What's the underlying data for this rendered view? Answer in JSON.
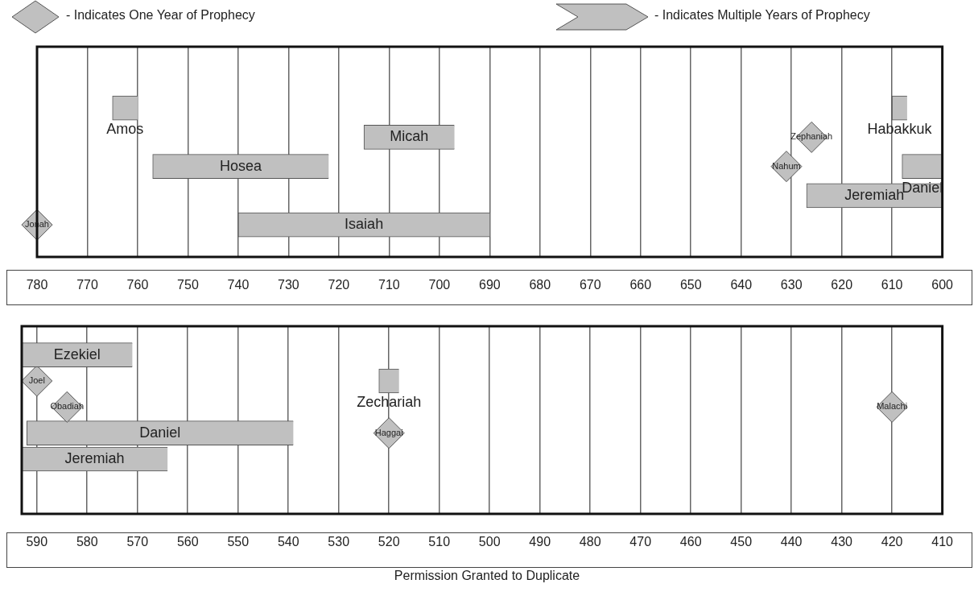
{
  "chart_data": [
    {
      "type": "bar",
      "orientation": "horizontal",
      "categories": [
        null,
        null,
        null,
        null,
        null,
        null
      ],
      "xlim": [
        780,
        600
      ],
      "xticks": [
        780,
        770,
        760,
        750,
        740,
        730,
        720,
        710,
        700,
        690,
        680,
        670,
        660,
        650,
        640,
        630,
        620,
        610,
        600
      ],
      "grid": "x",
      "annotations": [
        "- Indicates One Year of Prophecy",
        "- Indicates Multiple Years of Prophecy"
      ],
      "series": [
        {
          "name": "Amos",
          "color": "#c0c0c0",
          "base": [
            null,
            760,
            null,
            null,
            null,
            null
          ],
          "values": [
            null,
            5,
            null,
            null,
            null,
            null
          ]
        },
        {
          "name": "Habakkuk",
          "color": "#c0c0c0",
          "base": [
            null,
            607,
            null,
            null,
            null,
            null
          ],
          "values": [
            null,
            3,
            null,
            null,
            null,
            null
          ]
        },
        {
          "name": "Micah",
          "color": "#c0c0c0",
          "base": [
            null,
            null,
            697,
            null,
            null,
            null
          ],
          "values": [
            null,
            null,
            18,
            null,
            null,
            null
          ]
        },
        {
          "name": "Zephaniah",
          "type": "scatter",
          "color": "#c0c0c0",
          "marker": "diamond",
          "values": [
            null,
            null,
            626,
            null,
            null,
            null
          ]
        },
        {
          "name": "Hosea",
          "color": "#c0c0c0",
          "base": [
            null,
            null,
            null,
            722,
            null,
            null
          ],
          "values": [
            null,
            null,
            null,
            35,
            null,
            null
          ]
        },
        {
          "name": "Nahum",
          "type": "scatter",
          "color": "#c0c0c0",
          "marker": "diamond",
          "values": [
            null,
            null,
            null,
            631,
            null,
            null
          ]
        },
        {
          "name": "Daniel",
          "color": "#c0c0c0",
          "base": [
            null,
            null,
            null,
            600,
            null,
            null
          ],
          "values": [
            null,
            null,
            null,
            8,
            null,
            null
          ]
        },
        {
          "name": "Jeremiah",
          "color": "#c0c0c0",
          "base": [
            null,
            null,
            null,
            null,
            600,
            null
          ],
          "values": [
            null,
            null,
            null,
            null,
            27,
            null
          ]
        },
        {
          "name": "Jonah",
          "type": "scatter",
          "color": "#c0c0c0",
          "marker": "diamond",
          "values": [
            null,
            null,
            null,
            null,
            null,
            780
          ]
        },
        {
          "name": "Isaiah",
          "color": "#c0c0c0",
          "base": [
            null,
            null,
            null,
            null,
            null,
            690
          ],
          "values": [
            null,
            null,
            null,
            null,
            null,
            50
          ]
        }
      ]
    },
    {
      "type": "bar",
      "orientation": "horizontal",
      "categories": [
        null,
        null,
        null,
        null,
        null,
        null
      ],
      "xlim": [
        593,
        410
      ],
      "xticks": [
        590,
        580,
        570,
        560,
        550,
        540,
        530,
        520,
        510,
        500,
        490,
        480,
        470,
        460,
        450,
        440,
        430,
        420,
        410
      ],
      "grid": "x",
      "annotations": [
        "Permission Granted to Duplicate"
      ],
      "series": [
        {
          "name": "Ezekiel",
          "color": "#c0c0c0",
          "base": [
            571,
            null,
            null,
            null,
            null,
            null
          ],
          "values": [
            22,
            null,
            null,
            null,
            null,
            null
          ]
        },
        {
          "name": "Joel",
          "type": "scatter",
          "color": "#c0c0c0",
          "marker": "diamond",
          "values": [
            null,
            590,
            null,
            null,
            null,
            null
          ]
        },
        {
          "name": "Zechariah",
          "color": "#c0c0c0",
          "base": [
            null,
            518,
            null,
            null,
            null,
            null
          ],
          "values": [
            null,
            4,
            null,
            null,
            null,
            null
          ]
        },
        {
          "name": "Obadiah",
          "type": "scatter",
          "color": "#c0c0c0",
          "marker": "diamond",
          "values": [
            null,
            null,
            584,
            null,
            null,
            null
          ]
        },
        {
          "name": "Malachi",
          "type": "scatter",
          "color": "#c0c0c0",
          "marker": "diamond",
          "values": [
            null,
            null,
            420,
            null,
            null,
            null
          ]
        },
        {
          "name": "Daniel",
          "color": "#c0c0c0",
          "base": [
            null,
            null,
            null,
            539,
            null,
            null
          ],
          "values": [
            null,
            null,
            null,
            53,
            null,
            null
          ]
        },
        {
          "name": "Haggai",
          "type": "scatter",
          "color": "#c0c0c0",
          "marker": "diamond",
          "values": [
            null,
            null,
            null,
            520,
            null,
            null
          ]
        },
        {
          "name": "Jeremiah",
          "color": "#c0c0c0",
          "base": [
            null,
            null,
            null,
            null,
            564,
            null
          ],
          "values": [
            null,
            null,
            null,
            null,
            29,
            null
          ]
        }
      ]
    }
  ]
}
